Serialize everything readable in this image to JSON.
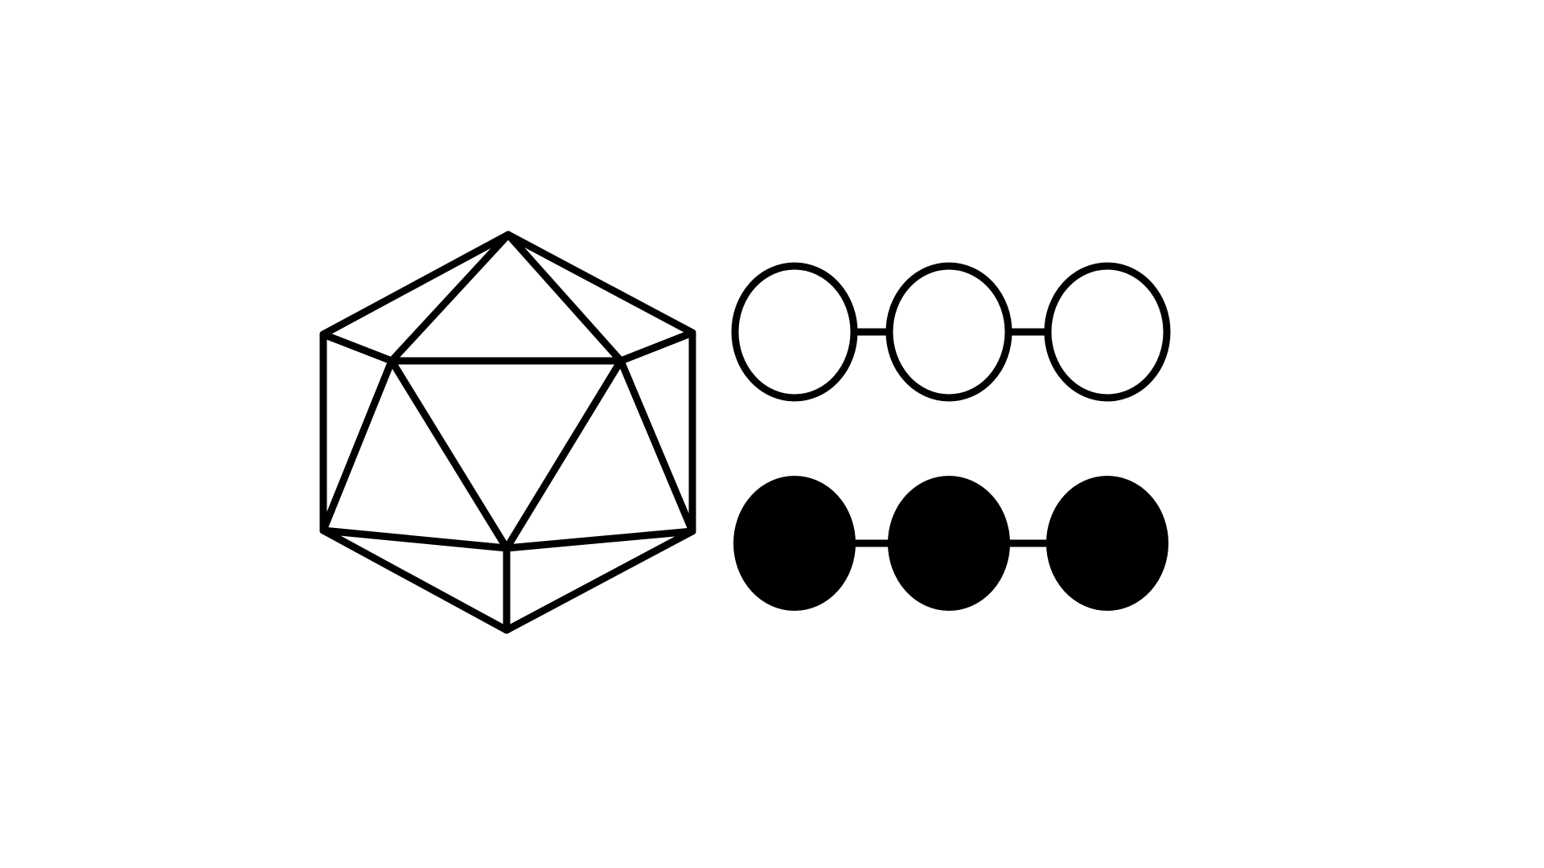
{
  "colors": {
    "background": "#ffffff",
    "stroke": "#000000",
    "fill": "#000000"
  },
  "figures": [
    {
      "name": "icosahedron-wireframe",
      "icon": "icosahedron-icon"
    },
    {
      "name": "hollow-bead-chain",
      "bead_count": 3,
      "filled": false
    },
    {
      "name": "solid-bead-chain",
      "bead_count": 3,
      "filled": true
    }
  ]
}
